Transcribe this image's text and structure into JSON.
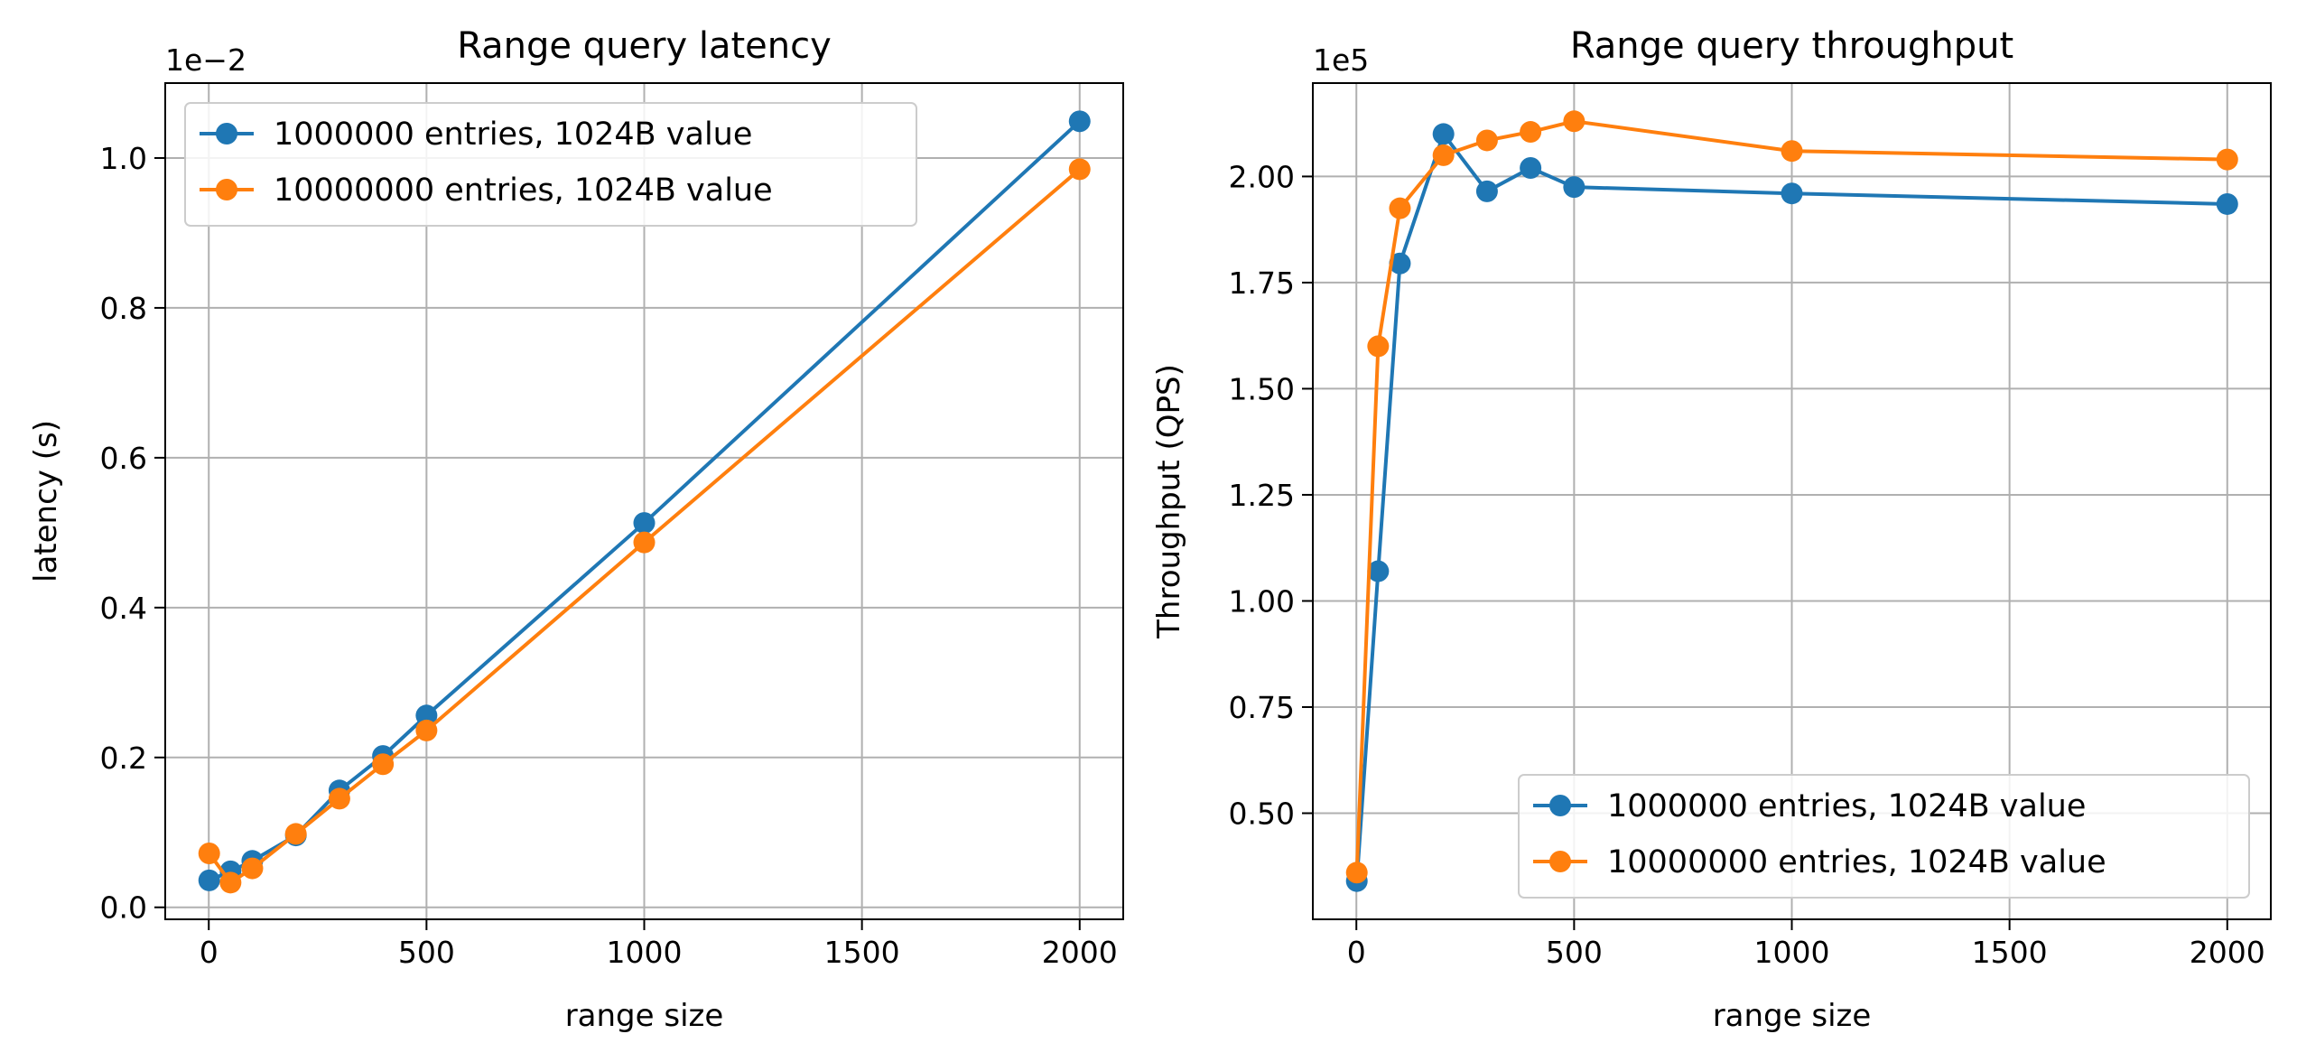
{
  "chart_data": [
    {
      "type": "line",
      "title": "Range query latency",
      "xlabel": "range size",
      "ylabel": "latency (s)",
      "y_offset_label": "1e−2",
      "xlim": [
        -100,
        2100
      ],
      "ylim": [
        -0.016,
        1.1
      ],
      "x_ticks": [
        0,
        500,
        1000,
        1500,
        2000
      ],
      "x_tick_labels": [
        "0",
        "500",
        "1000",
        "1500",
        "2000"
      ],
      "y_ticks": [
        0.0,
        0.2,
        0.4,
        0.6,
        0.8,
        1.0
      ],
      "y_tick_labels": [
        "0.0",
        "0.2",
        "0.4",
        "0.6",
        "0.8",
        "1.0"
      ],
      "grid": true,
      "legend_position": "upper left",
      "x": [
        1,
        50,
        100,
        200,
        300,
        400,
        500,
        1000,
        2000
      ],
      "series": [
        {
          "name": "1000000 entries, 1024B value",
          "color": "#1f77b4",
          "values": [
            0.036,
            0.048,
            0.062,
            0.096,
            0.156,
            0.202,
            0.256,
            0.513,
            1.049
          ]
        },
        {
          "name": "10000000 entries, 1024B value",
          "color": "#ff7f0e",
          "values": [
            0.072,
            0.033,
            0.052,
            0.098,
            0.145,
            0.191,
            0.236,
            0.487,
            0.985
          ]
        }
      ]
    },
    {
      "type": "line",
      "title": "Range query throughput",
      "xlabel": "range size",
      "ylabel": "Throughput (QPS)",
      "y_offset_label": "1e5",
      "xlim": [
        -100,
        2100
      ],
      "ylim": [
        0.25,
        2.22
      ],
      "x_ticks": [
        0,
        500,
        1000,
        1500,
        2000
      ],
      "x_tick_labels": [
        "0",
        "500",
        "1000",
        "1500",
        "2000"
      ],
      "y_ticks": [
        0.5,
        0.75,
        1.0,
        1.25,
        1.5,
        1.75,
        2.0
      ],
      "y_tick_labels": [
        "0.50",
        "0.75",
        "1.00",
        "1.25",
        "1.50",
        "1.75",
        "2.00"
      ],
      "grid": true,
      "legend_position": "lower right",
      "x": [
        1,
        50,
        100,
        200,
        300,
        400,
        500,
        1000,
        2000
      ],
      "series": [
        {
          "name": "1000000 entries, 1024B value",
          "color": "#1f77b4",
          "values": [
            0.34,
            1.07,
            1.795,
            2.1,
            1.965,
            2.02,
            1.975,
            1.96,
            1.935
          ]
        },
        {
          "name": "10000000 entries, 1024B value",
          "color": "#ff7f0e",
          "values": [
            0.36,
            1.6,
            1.925,
            2.05,
            2.085,
            2.105,
            2.13,
            2.06,
            2.04
          ]
        }
      ]
    }
  ]
}
